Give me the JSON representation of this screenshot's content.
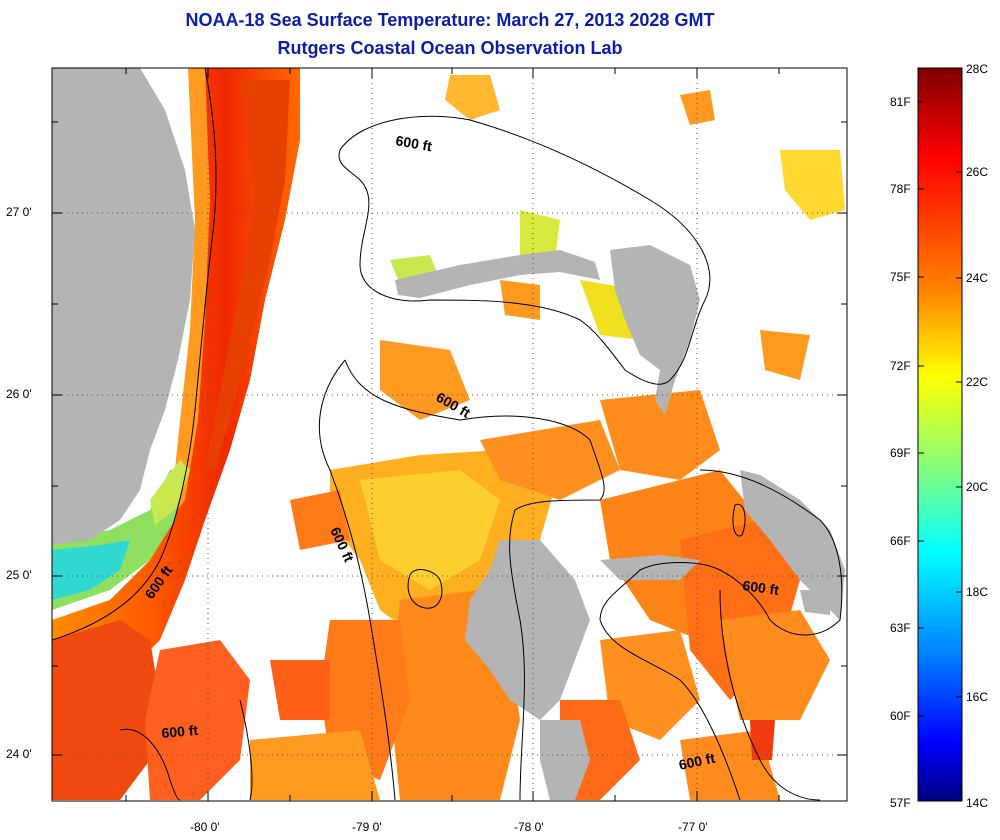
{
  "title_line1": "NOAA-18 Sea Surface Temperature:  March 27, 2013 2028 GMT",
  "title_line2": "Rutgers Coastal Ocean Observation Lab",
  "contour_label": "600 ft",
  "longitude_ticks": [
    "-80 0'",
    "-79 0'",
    "-78 0'",
    "-77 0'"
  ],
  "latitude_ticks": [
    "27 0'",
    "26 0'",
    "25 0'",
    "24 0'"
  ],
  "colorbar": {
    "fahrenheit_labels": [
      "81F",
      "78F",
      "75F",
      "72F",
      "69F",
      "66F",
      "63F",
      "60F",
      "57F"
    ],
    "celsius_labels": [
      "28C",
      "26C",
      "24C",
      "22C",
      "20C",
      "18C",
      "16C",
      "14C"
    ],
    "range_c": [
      14,
      28
    ],
    "stops": [
      "#7f0000",
      "#ff0000",
      "#ff8000",
      "#ffff00",
      "#80ff80",
      "#00ffff",
      "#0080ff",
      "#0000ff",
      "#00007f"
    ]
  },
  "colors": {
    "land": "#b4b4b4",
    "title": "#0a1ea8",
    "no_data": "#ffffff"
  }
}
